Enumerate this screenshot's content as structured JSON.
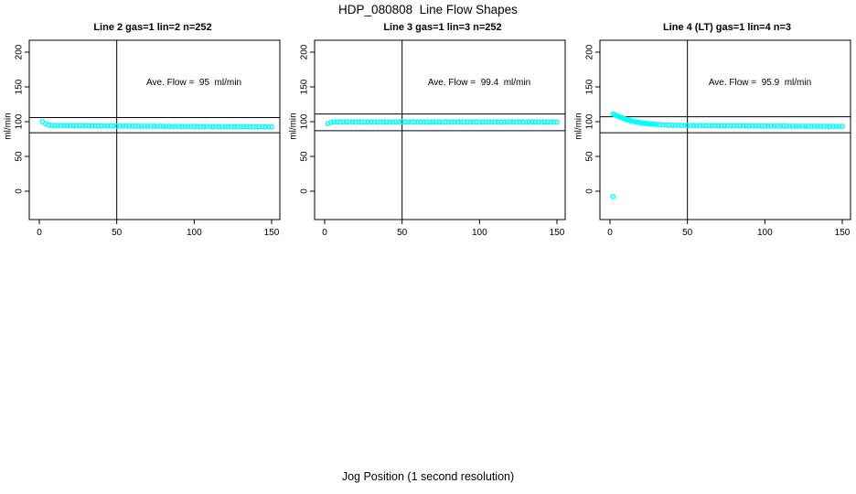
{
  "title": "HDP_080808  Line Flow Shapes",
  "xlabel": "Jog Position (1 second resolution)",
  "accent_color": "#00ffff",
  "line_color": "#000000",
  "chart_data": [
    {
      "type": "scatter",
      "title": "Line 2 gas=1 lin=2 n=252",
      "annotation": "Ave. Flow =  95  ml/min",
      "ave_flow": 95,
      "ylabel": "ml/min",
      "x_ticks": [
        0,
        50,
        100,
        150
      ],
      "y_ticks": [
        0,
        50,
        100,
        150,
        200
      ],
      "xlim": [
        0,
        155
      ],
      "ylim": [
        -20,
        215
      ],
      "vline_x": 50,
      "hlines": [
        106,
        84
      ],
      "x_start": 2,
      "x_step": 2,
      "y": [
        100.0,
        96.8,
        95.3,
        94.7,
        94.4,
        94.6,
        94.2,
        94.5,
        94.1,
        94.4,
        94.0,
        94.3,
        94.2,
        93.9,
        94.2,
        93.8,
        94.1,
        94.0,
        93.7,
        94.0,
        93.9,
        93.6,
        93.9,
        93.8,
        93.6,
        93.8,
        93.5,
        93.8,
        93.7,
        93.4,
        93.7,
        93.6,
        93.4,
        93.6,
        93.3,
        93.6,
        93.5,
        93.2,
        93.5,
        93.4,
        93.2,
        93.4,
        93.1,
        93.4,
        93.3,
        93.1,
        93.3,
        93.0,
        93.3,
        93.2,
        93.0,
        93.2,
        92.9,
        93.2,
        93.1,
        92.9,
        93.1,
        92.8,
        93.1,
        93.0,
        92.8,
        93.0,
        92.7,
        93.0,
        92.9,
        92.7,
        92.9,
        92.6,
        92.9,
        92.8,
        92.6,
        92.8,
        92.5,
        92.8,
        92.7
      ],
      "extra_points": [],
      "outliers": []
    },
    {
      "type": "scatter",
      "title": "Line 3 gas=1 lin=3 n=252",
      "annotation": "Ave. Flow =  99.4  ml/min",
      "ave_flow": 99.4,
      "ylabel": "ml/min",
      "x_ticks": [
        0,
        50,
        100,
        150
      ],
      "y_ticks": [
        0,
        50,
        100,
        150,
        200
      ],
      "xlim": [
        0,
        155
      ],
      "ylim": [
        -20,
        215
      ],
      "vline_x": 50,
      "hlines": [
        111,
        87
      ],
      "x_start": 2,
      "x_step": 2,
      "y": [
        97.2,
        98.8,
        99.3,
        99.6,
        99.4,
        99.7,
        99.3,
        99.6,
        99.5,
        99.2,
        99.6,
        99.4,
        99.7,
        99.3,
        99.6,
        99.4,
        99.2,
        99.5,
        99.7,
        99.3,
        99.5,
        99.2,
        99.6,
        99.4,
        99.6,
        99.3,
        99.5,
        99.7,
        99.4,
        99.2,
        99.5,
        99.3,
        99.6,
        99.4,
        99.7,
        99.3,
        99.5,
        99.2,
        99.4,
        99.6,
        99.3,
        99.5,
        99.7,
        99.4,
        99.2,
        99.5,
        99.3,
        99.6,
        99.4,
        99.2,
        99.5,
        99.7,
        99.3,
        99.5,
        99.4,
        99.6,
        99.2,
        99.5,
        99.3,
        99.6,
        99.4,
        99.7,
        99.3,
        99.5,
        99.2,
        99.4,
        99.6,
        99.3,
        99.5,
        99.4,
        99.6,
        99.3,
        99.5,
        99.4,
        99.2
      ],
      "extra_points": [],
      "outliers": []
    },
    {
      "type": "scatter",
      "title": "Line 4 (LT) gas=1 lin=4 n=3",
      "annotation": "Ave. Flow =  95.9  ml/min",
      "ave_flow": 95.9,
      "ylabel": "ml/min",
      "x_ticks": [
        0,
        50,
        100,
        150
      ],
      "y_ticks": [
        0,
        50,
        100,
        150,
        200
      ],
      "xlim": [
        0,
        155
      ],
      "ylim": [
        -20,
        215
      ],
      "vline_x": 50,
      "hlines": [
        107,
        84
      ],
      "x_start": 2,
      "x_step": 2,
      "y": [
        111.0,
        109.0,
        107.0,
        105.2,
        103.6,
        102.2,
        101.0,
        100.0,
        99.1,
        98.4,
        97.8,
        97.3,
        96.8,
        96.4,
        96.1,
        95.8,
        95.6,
        95.4,
        95.2,
        95.1,
        94.9,
        94.8,
        94.7,
        94.6,
        94.6,
        94.5,
        94.4,
        94.5,
        94.3,
        94.4,
        94.2,
        94.4,
        94.1,
        94.3,
        94.0,
        94.2,
        94.0,
        94.1,
        93.9,
        94.1,
        93.9,
        94.0,
        93.8,
        94.0,
        93.8,
        93.9,
        93.7,
        93.9,
        93.7,
        93.8,
        93.6,
        93.8,
        93.6,
        93.7,
        93.5,
        93.7,
        93.5,
        93.6,
        93.5,
        93.6,
        93.4,
        93.6,
        93.4,
        93.5,
        93.3,
        93.5,
        93.3,
        93.4,
        93.3,
        93.4,
        93.2,
        93.4,
        93.2,
        93.3,
        93.3
      ],
      "extra_points": [
        [
          3,
          110.2
        ],
        [
          5,
          108.1
        ],
        [
          7,
          106.2
        ],
        [
          9,
          104.5
        ],
        [
          11,
          103.0
        ],
        [
          13,
          101.7
        ],
        [
          15,
          100.6
        ],
        [
          17,
          99.6
        ],
        [
          19,
          98.8
        ],
        [
          21,
          98.1
        ],
        [
          23,
          97.5
        ],
        [
          25,
          97.0
        ],
        [
          27,
          96.6
        ],
        [
          29,
          96.2
        ]
      ],
      "outliers": [
        [
          2,
          -8
        ]
      ]
    }
  ]
}
